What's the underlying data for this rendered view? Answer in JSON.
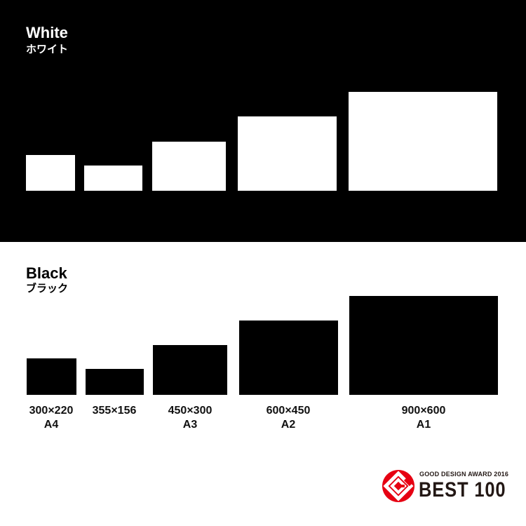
{
  "white_section": {
    "title": "White",
    "subtitle": "ホワイト",
    "color": "#ffffff",
    "background": "#000000"
  },
  "black_section": {
    "title": "Black",
    "subtitle": "ブラック",
    "color": "#000000",
    "background": "#ffffff"
  },
  "sizes": [
    {
      "dimensions": "300×220",
      "name": "A4"
    },
    {
      "dimensions": "355×156",
      "name": ""
    },
    {
      "dimensions": "450×300",
      "name": "A3"
    },
    {
      "dimensions": "600×450",
      "name": "A2"
    },
    {
      "dimensions": "900×600",
      "name": "A1"
    }
  ],
  "award": {
    "line1": "GOOD DESIGN AWARD 2016",
    "line2": "BEST 100",
    "logo_color": "#e60012"
  }
}
